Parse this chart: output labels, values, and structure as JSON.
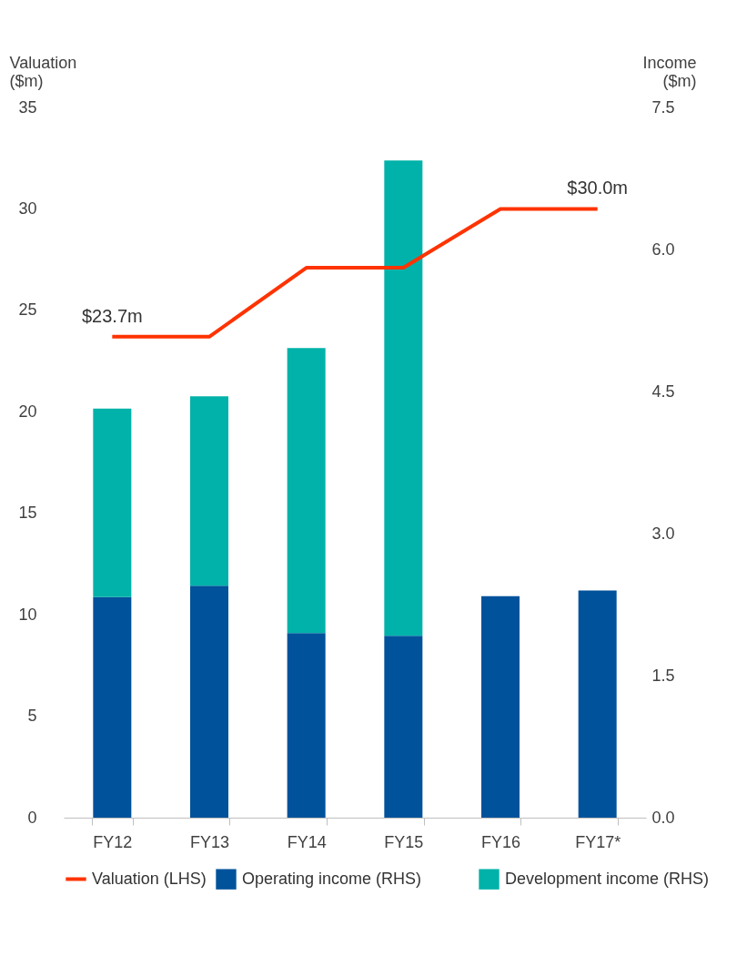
{
  "chart_data": {
    "type": "bar",
    "stacked": true,
    "categories": [
      "FY12",
      "FY13",
      "FY14",
      "FY15",
      "FY16",
      "FY17*"
    ],
    "series": [
      {
        "name": "Operating income (RHS)",
        "color": "#00529b",
        "axis": "y2",
        "values": [
          2.33,
          2.45,
          1.95,
          1.92,
          2.34,
          2.4
        ]
      },
      {
        "name": "Development income (RHS)",
        "color": "#00b2a9",
        "axis": "y2",
        "values": [
          1.99,
          2.0,
          3.01,
          5.02,
          null,
          null
        ]
      },
      {
        "name": "Valuation (LHS)",
        "type": "line",
        "color": "#ff3300",
        "values": [
          23.7,
          23.7,
          27.1,
          27.1,
          30.0,
          30.0
        ]
      }
    ],
    "ylabel": "Valuation ($m)",
    "y2label": "Income ($m)",
    "ylim": [
      0,
      35
    ],
    "yticks": [
      0,
      5,
      10,
      15,
      20,
      25,
      30,
      35
    ],
    "y2lim": [
      0,
      7.5
    ],
    "y2ticks": [
      {
        "value": 0,
        "label": "0.0"
      },
      {
        "value": 1.5,
        "label": "1.5"
      },
      {
        "value": 3,
        "label": "3.0"
      },
      {
        "value": 4.5,
        "label": "4.5"
      },
      {
        "value": 6,
        "label": "6.0"
      },
      {
        "value": 7.5,
        "label": "7.5"
      }
    ],
    "annotations": [
      {
        "text": "$23.7m",
        "x": "FY12",
        "y": 23.7
      },
      {
        "text": "$30.0m",
        "x": "FY17*",
        "y": 30.0
      }
    ],
    "legend": "bottom",
    "grid": false,
    "marker": "none",
    "line_style": "solid"
  }
}
